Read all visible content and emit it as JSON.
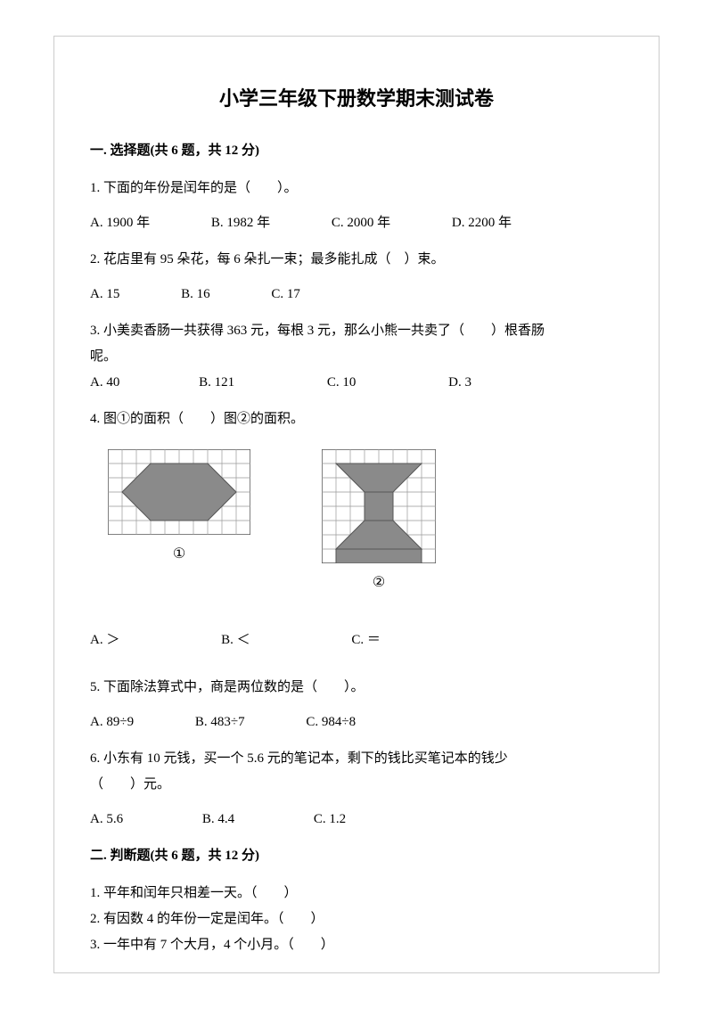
{
  "title": "小学三年级下册数学期末测试卷",
  "section1": {
    "header": "一. 选择题(共 6 题，共 12 分)",
    "q1": {
      "text": "1. 下面的年份是闰年的是（　　）。",
      "a": "A. 1900 年",
      "b": "B. 1982 年",
      "c": "C. 2000 年",
      "d": "D. 2200 年"
    },
    "q2": {
      "text": "2. 花店里有 95 朵花，每 6 朵扎一束；最多能扎成（　）束。",
      "a": "A. 15",
      "b": "B. 16",
      "c": "C. 17"
    },
    "q3": {
      "line1": "3. 小美卖香肠一共获得 363 元，每根 3 元，那么小熊一共卖了（　　）根香肠",
      "line2": "呢。",
      "a": "A. 40",
      "b": "B. 121",
      "c": "C. 10",
      "d": "D. 3"
    },
    "q4": {
      "text": "4. 图①的面积（　　）图②的面积。",
      "label1": "①",
      "label2": "②",
      "a": "A. ＞",
      "b": "B. ＜",
      "c": "C. ＝"
    },
    "q5": {
      "text": "5. 下面除法算式中，商是两位数的是（　　）。",
      "a": "A. 89÷9",
      "b": "B. 483÷7",
      "c": "C. 984÷8"
    },
    "q6": {
      "line1": "6. 小东有 10 元钱，买一个 5.6 元的笔记本，剩下的钱比买笔记本的钱少",
      "line2": "（　　）元。",
      "a": "A. 5.6",
      "b": "B. 4.4",
      "c": "C. 1.2"
    }
  },
  "section2": {
    "header": "二. 判断题(共 6 题，共 12 分)",
    "q1": "1. 平年和闰年只相差一天。（　　）",
    "q2": "2. 有因数 4 的年份一定是闰年。（　　）",
    "q3": "3. 一年中有 7 个大月，4 个小月。（　　）"
  },
  "figures": {
    "grid_stroke": "#999999",
    "fill_color": "#8a8a8a",
    "border_color": "#555555",
    "fig1": {
      "cols": 10,
      "rows": 6,
      "cell": 16
    },
    "fig2": {
      "cols": 8,
      "rows": 8,
      "cell": 16
    }
  }
}
